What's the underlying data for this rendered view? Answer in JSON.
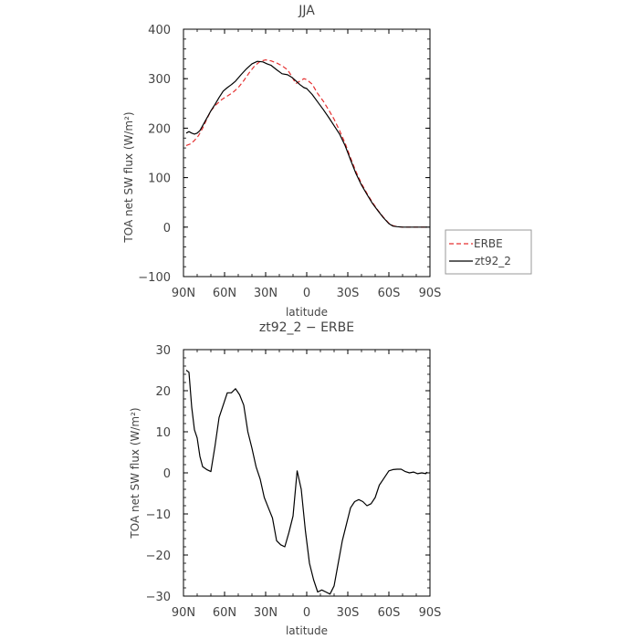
{
  "chart_data": [
    {
      "type": "line",
      "title": "JJA",
      "xlabel": "latitude",
      "ylabel": "TOA net SW flux (W/m²)",
      "xlim": [
        90,
        -90
      ],
      "ylim": [
        -100,
        400
      ],
      "x_ticks": [
        90,
        60,
        30,
        0,
        -30,
        -60,
        -90
      ],
      "x_tick_labels": [
        "90N",
        "60N",
        "30N",
        "0",
        "30S",
        "60S",
        "90S"
      ],
      "y_ticks": [
        -100,
        0,
        100,
        200,
        300,
        400
      ],
      "y_tick_labels": [
        "−100",
        "0",
        "100",
        "200",
        "300",
        "400"
      ],
      "legend": "right",
      "series": [
        {
          "name": "ERBE",
          "color": "#e53030",
          "dash": true,
          "x": [
            88,
            85,
            82,
            79,
            76,
            73,
            70,
            66,
            62,
            58,
            54,
            50,
            46,
            42,
            38,
            34,
            30,
            26,
            22,
            18,
            14,
            11,
            8,
            5,
            2,
            0,
            -4,
            -8,
            -12,
            -16,
            -20,
            -24,
            -28,
            -32,
            -36,
            -40,
            -44,
            -48,
            -52,
            -56,
            -60,
            -63,
            -66,
            -70,
            -75,
            -80,
            -85,
            -88
          ],
          "y": [
            165,
            168,
            175,
            185,
            200,
            218,
            235,
            248,
            258,
            265,
            272,
            282,
            296,
            312,
            326,
            335,
            338,
            336,
            332,
            326,
            318,
            305,
            290,
            295,
            300,
            298,
            289,
            270,
            255,
            237,
            218,
            195,
            170,
            140,
            112,
            88,
            68,
            50,
            34,
            20,
            8,
            3,
            1,
            0,
            0,
            0,
            0,
            0
          ]
        },
        {
          "name": "zt92_2",
          "color": "#000000",
          "dash": false,
          "x": [
            88,
            86,
            84,
            82,
            80,
            78,
            76,
            73,
            70,
            67,
            64,
            61,
            58,
            55,
            52,
            48,
            44,
            40,
            36,
            32,
            29,
            26,
            22,
            18,
            14,
            11,
            8,
            5,
            2,
            0,
            -4,
            -8,
            -12,
            -16,
            -20,
            -24,
            -28,
            -32,
            -36,
            -40,
            -44,
            -48,
            -52,
            -56,
            -60,
            -63,
            -66,
            -70,
            -75,
            -80,
            -85,
            -88
          ],
          "y": [
            190,
            193,
            190,
            188,
            190,
            195,
            205,
            220,
            235,
            248,
            262,
            275,
            282,
            288,
            295,
            308,
            320,
            330,
            335,
            334,
            330,
            327,
            318,
            310,
            308,
            303,
            296,
            288,
            282,
            280,
            268,
            253,
            238,
            222,
            205,
            188,
            165,
            136,
            108,
            85,
            66,
            48,
            33,
            19,
            7,
            2,
            1,
            0,
            0,
            0,
            0,
            0
          ]
        }
      ]
    },
    {
      "type": "line",
      "title": "zt92_2 − ERBE",
      "xlabel": "latitude",
      "ylabel": "TOA net SW flux (W/m²)",
      "xlim": [
        90,
        -90
      ],
      "ylim": [
        -30,
        30
      ],
      "x_ticks": [
        90,
        60,
        30,
        0,
        -30,
        -60,
        -90
      ],
      "x_tick_labels": [
        "90N",
        "60N",
        "30N",
        "0",
        "30S",
        "60S",
        "90S"
      ],
      "y_ticks": [
        -30,
        -20,
        -10,
        0,
        10,
        20,
        30
      ],
      "y_tick_labels": [
        "−30",
        "−20",
        "−10",
        "0",
        "10",
        "20",
        "30"
      ],
      "series": [
        {
          "color": "#000000",
          "x": [
            88,
            86,
            84,
            82,
            80,
            78,
            76,
            73,
            70,
            67,
            64,
            61,
            58,
            55,
            52,
            49,
            46,
            43,
            40,
            37,
            34,
            31,
            28,
            25,
            22,
            19,
            16,
            13,
            10,
            7,
            4,
            1,
            -2,
            -5,
            -8,
            -11,
            -14,
            -17,
            -20,
            -23,
            -26,
            -29,
            -32,
            -35,
            -38,
            -41,
            -44,
            -47,
            -50,
            -53,
            -56,
            -60,
            -63,
            -66,
            -69,
            -72,
            -75,
            -78,
            -81,
            -84,
            -87,
            -88
          ],
          "y": [
            25,
            24.5,
            16,
            10.5,
            8.5,
            4,
            1.5,
            0.8,
            0.3,
            6.5,
            13.5,
            16.5,
            19.5,
            19.5,
            20.5,
            19,
            16.5,
            10,
            6,
            1.5,
            -1.5,
            -6,
            -8.5,
            -11,
            -16.5,
            -17.5,
            -18,
            -14.5,
            -10.5,
            0.5,
            -4,
            -14,
            -22,
            -26,
            -29,
            -28.5,
            -29,
            -29.5,
            -27.5,
            -22,
            -16.5,
            -12.5,
            -8.5,
            -7,
            -6.5,
            -7,
            -8,
            -7.5,
            -6,
            -3,
            -1.5,
            0.5,
            0.8,
            0.9,
            0.9,
            0.3,
            0,
            0.2,
            -0.2,
            0,
            -0.2,
            0.2
          ]
        }
      ]
    }
  ]
}
